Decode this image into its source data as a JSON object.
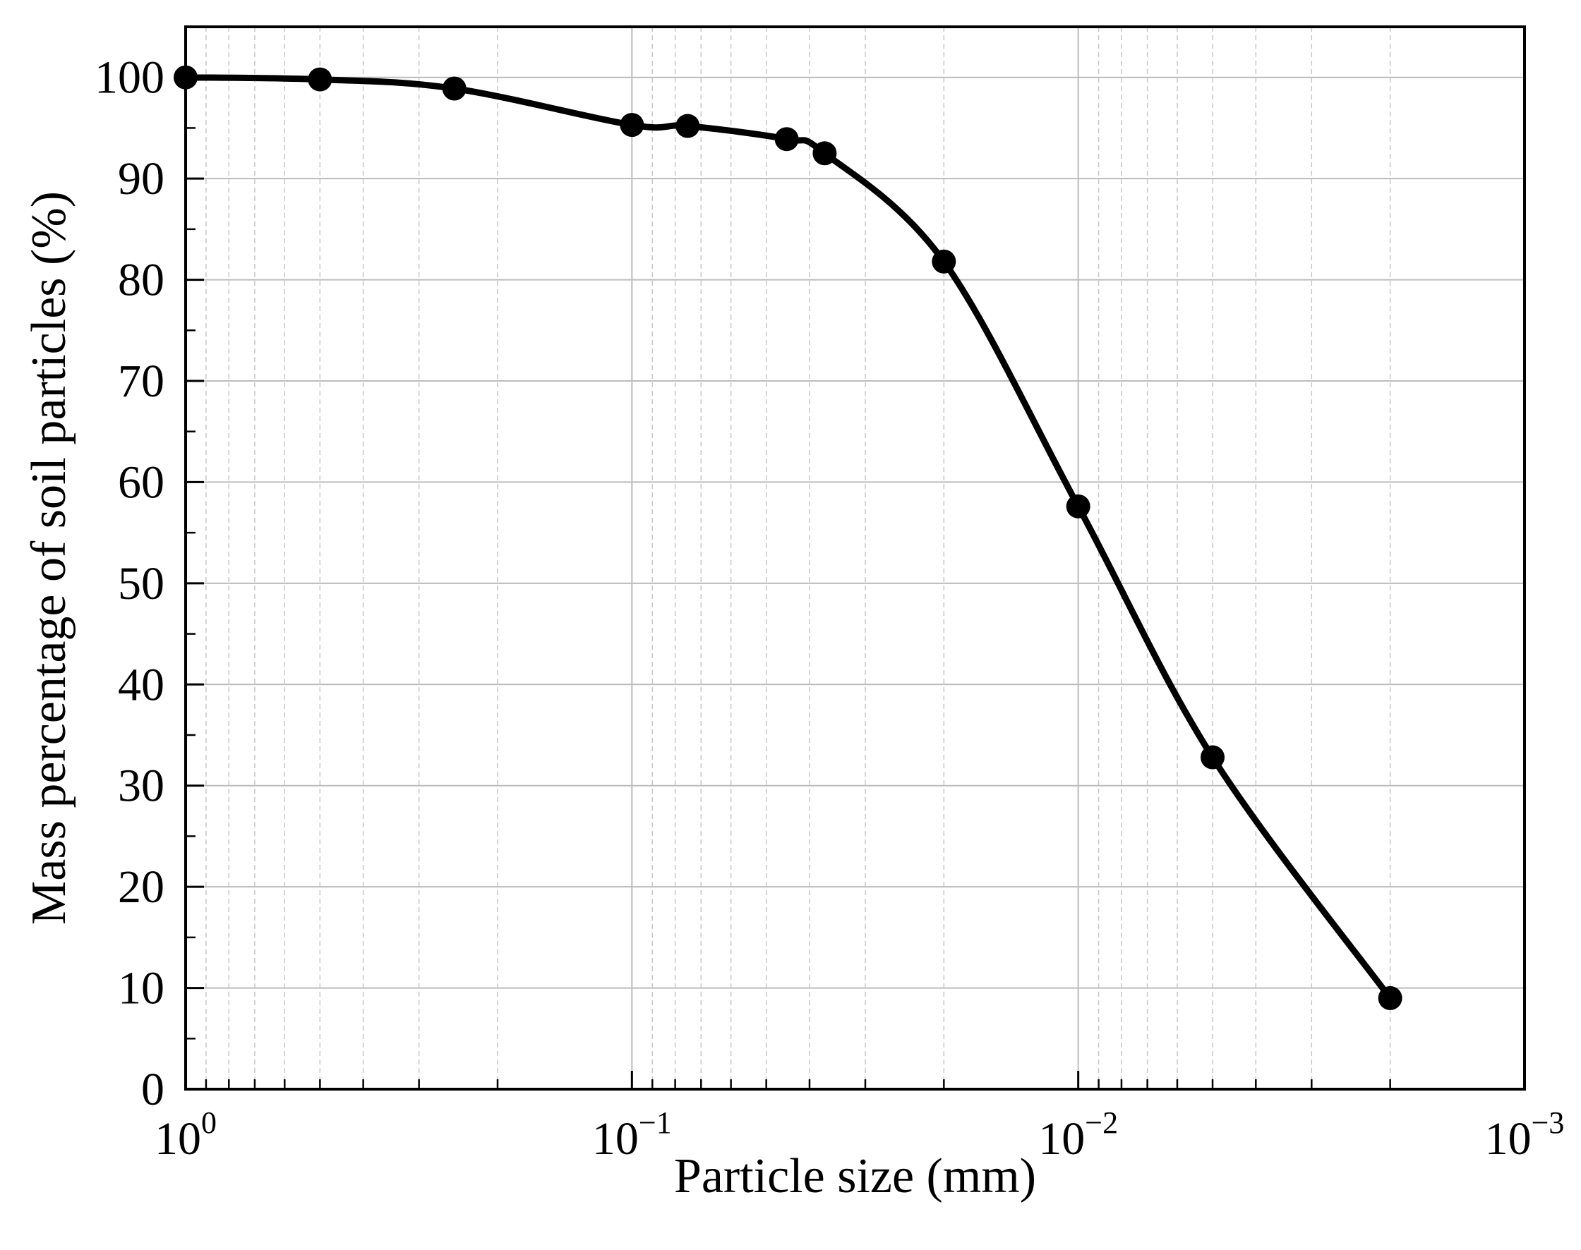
{
  "chart_data": {
    "type": "line",
    "title": "",
    "xlabel": "Particle size (mm)",
    "ylabel": "Mass percentage of soil particles (%)",
    "x_scale": "log",
    "x_reversed": true,
    "xlim": [
      1,
      0.001
    ],
    "ylim": [
      0,
      105
    ],
    "grid": true,
    "marker": "filled-circle",
    "color": "#000000",
    "x_ticks": [
      {
        "value": 1,
        "base": "10",
        "exp": "0"
      },
      {
        "value": 0.1,
        "base": "10",
        "exp": "−1"
      },
      {
        "value": 0.01,
        "base": "10",
        "exp": "−2"
      },
      {
        "value": 0.001,
        "base": "10",
        "exp": "−3"
      }
    ],
    "y_ticks": [
      0,
      10,
      20,
      30,
      40,
      50,
      60,
      70,
      80,
      90,
      100
    ],
    "series": [
      {
        "x": [
          1.0,
          0.5,
          0.25,
          0.1,
          0.075,
          0.045,
          0.037,
          0.02,
          0.01,
          0.005,
          0.002
        ],
        "y": [
          100,
          99.8,
          98.9,
          95.3,
          95.2,
          93.9,
          92.5,
          81.8,
          57.6,
          32.8,
          9.0
        ]
      }
    ]
  }
}
